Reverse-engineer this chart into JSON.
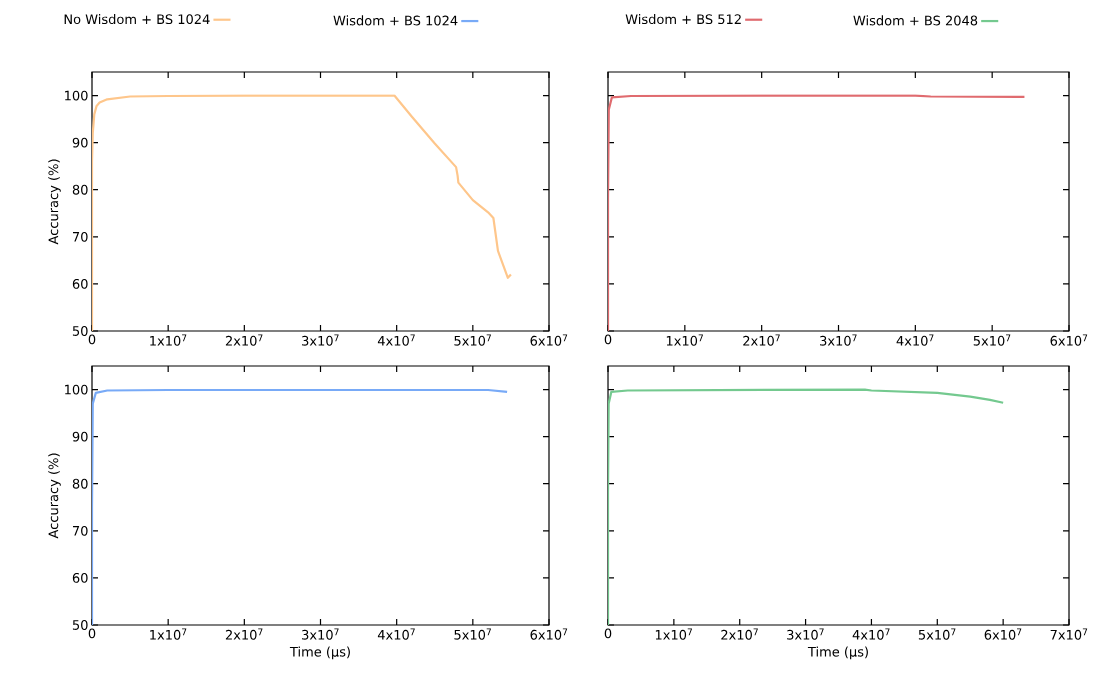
{
  "chart_data": [
    {
      "type": "line",
      "ylabel": "Accuracy (%)",
      "xlim": [
        0,
        60000000
      ],
      "ylim": [
        50,
        105
      ],
      "xticks": [
        0,
        {
          "value": 10000000,
          "label": "1x10$^{7}$"
        },
        {
          "value": 20000000,
          "label": "2x10$^{7}$"
        },
        {
          "value": 30000000,
          "label": "3x10$^{7}$"
        },
        {
          "value": 40000000,
          "label": "4x10$^{7}$"
        },
        {
          "value": 50000000,
          "label": "5x10$^{7}$"
        },
        {
          "value": 60000000,
          "label": "6x10$^{7}$"
        }
      ],
      "yticks": [
        50,
        60,
        70,
        80,
        90,
        100
      ],
      "legend": "top",
      "grid": false,
      "series": [
        {
          "name": "No Wisdom + BS 1024",
          "color": "#fec68b",
          "x": [
            0,
            0,
            100000,
            300000,
            600000,
            1000000,
            2000000,
            5000000,
            10000000,
            20000000,
            39700000,
            42000000,
            45000000,
            47800000,
            48000000,
            48100000,
            50000000,
            52000000,
            52700000,
            53300000,
            54600000,
            55000000
          ],
          "values": [
            50,
            86,
            92,
            96,
            97.8,
            98.5,
            99.2,
            99.8,
            99.9,
            100,
            100,
            95.5,
            89.8,
            84.8,
            83,
            81.5,
            77.8,
            75.2,
            74,
            67,
            61.3,
            62
          ]
        }
      ]
    },
    {
      "type": "line",
      "xlim": [
        0,
        60000000
      ],
      "ylim": [
        50,
        105
      ],
      "xticks": [
        0,
        {
          "value": 10000000,
          "label": "1x10$^{7}$"
        },
        {
          "value": 20000000,
          "label": "2x10$^{7}$"
        },
        {
          "value": 30000000,
          "label": "3x10$^{7}$"
        },
        {
          "value": 40000000,
          "label": "4x10$^{7}$"
        },
        {
          "value": 50000000,
          "label": "5x10$^{7}$"
        },
        {
          "value": 60000000,
          "label": "6x10$^{7}$"
        }
      ],
      "tick_labels": "x",
      "legend": "top",
      "grid": false,
      "series": [
        {
          "name": "Wisdom + BS 512",
          "color": "#e06b6f",
          "x": [
            0,
            0,
            100000,
            500000,
            3000000,
            20000000,
            40000000,
            42000000,
            54200000
          ],
          "values": [
            50,
            78,
            97,
            99.6,
            99.9,
            100,
            100,
            99.8,
            99.7
          ]
        }
      ]
    },
    {
      "type": "line",
      "xlabel": "Time (µs)",
      "ylabel": "Accuracy (%)",
      "xlim": [
        0,
        60000000
      ],
      "ylim": [
        50,
        105
      ],
      "xticks": [
        0,
        {
          "value": 10000000,
          "label": "1x10$^{7}$"
        },
        {
          "value": 20000000,
          "label": "2x10$^{7}$"
        },
        {
          "value": 30000000,
          "label": "3x10$^{7}$"
        },
        {
          "value": 40000000,
          "label": "4x10$^{7}$"
        },
        {
          "value": 50000000,
          "label": "5x10$^{7}$"
        },
        {
          "value": 60000000,
          "label": "6x10$^{7}$"
        }
      ],
      "yticks": [
        50,
        60,
        70,
        80,
        90,
        100
      ],
      "legend": "top",
      "grid": false,
      "series": [
        {
          "name": "Wisdom + BS 1024",
          "color": "#78aaf7",
          "x": [
            0,
            0,
            100000,
            500000,
            2000000,
            10000000,
            52000000,
            54500000
          ],
          "values": [
            50,
            75,
            97,
            99.3,
            99.8,
            99.9,
            99.9,
            99.5
          ]
        }
      ]
    },
    {
      "type": "line",
      "xlabel": "Time (µs)",
      "xlim": [
        0,
        70000000
      ],
      "ylim": [
        50,
        105
      ],
      "xticks": [
        0,
        {
          "value": 10000000,
          "label": "1x10$^{7}$"
        },
        {
          "value": 20000000,
          "label": "2x10$^{7}$"
        },
        {
          "value": 30000000,
          "label": "3x10$^{7}$"
        },
        {
          "value": 40000000,
          "label": "4x10$^{7}$"
        },
        {
          "value": 50000000,
          "label": "5x10$^{7}$"
        },
        {
          "value": 60000000,
          "label": "6x10$^{7}$"
        },
        {
          "value": 70000000,
          "label": "7x10$^{7}$"
        }
      ],
      "tick_labels": "x",
      "legend": "top",
      "grid": false,
      "series": [
        {
          "name": "Wisdom + BS 2048",
          "color": "#74c98f",
          "x": [
            0,
            0,
            100000,
            500000,
            3000000,
            39000000,
            40000000,
            50000000,
            55000000,
            58000000,
            60000000
          ],
          "values": [
            50,
            78,
            97,
            99.5,
            99.8,
            100,
            99.8,
            99.3,
            98.5,
            97.8,
            97.2
          ]
        }
      ]
    }
  ]
}
